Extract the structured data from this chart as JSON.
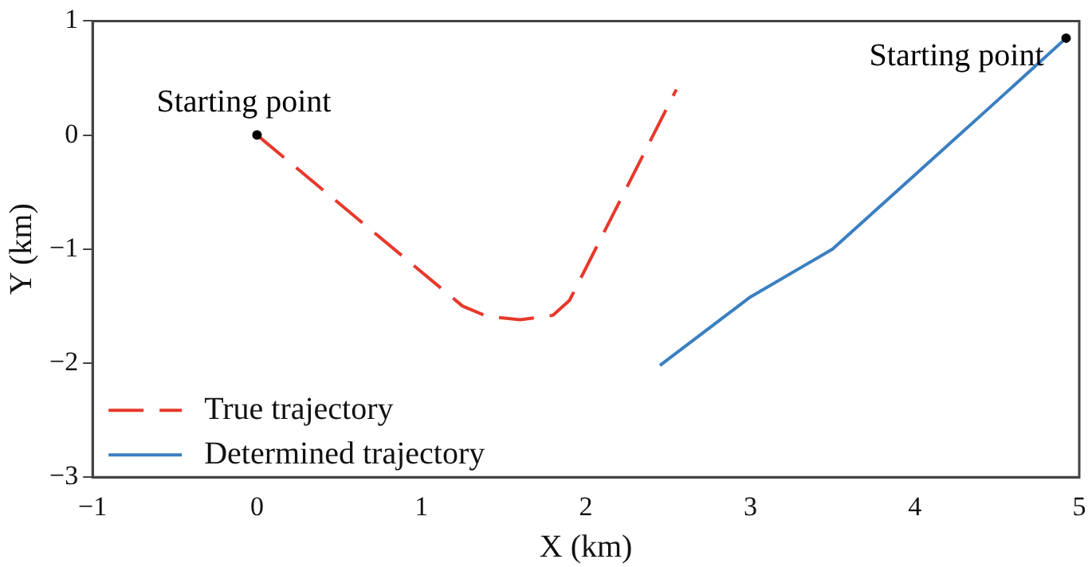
{
  "chart_data": {
    "type": "line",
    "xlabel": "X (km)",
    "ylabel": "Y (km)",
    "xlim": [
      -1,
      5
    ],
    "xticks": [
      {
        "value": -1,
        "label": "−1"
      },
      0,
      1,
      2,
      3,
      4,
      5
    ],
    "ylim": [
      -3,
      1
    ],
    "yticks": [
      {
        "value": -3,
        "label": "−3"
      },
      {
        "value": -2,
        "label": "−2"
      },
      {
        "value": -1,
        "label": "−1"
      },
      0,
      1
    ],
    "grid": false,
    "legend": "bottom left",
    "marker": "none",
    "series": [
      {
        "name": "True trajectory",
        "color": "#e8382b",
        "line_style": "dashed",
        "x": [
          0,
          0.5,
          1.0,
          1.25,
          1.4,
          1.6,
          1.8,
          1.9,
          2.55
        ],
        "values": [
          0,
          -0.6,
          -1.2,
          -1.5,
          -1.59,
          -1.62,
          -1.58,
          -1.45,
          0.4
        ]
      },
      {
        "name": "Determined trajectory",
        "color": "#3a7fc1",
        "line_style": "solid",
        "x": [
          2.45,
          3,
          3.5,
          4,
          4.2,
          4.5,
          4.92
        ],
        "values": [
          -2.02,
          -1.42,
          -1.0,
          -0.35,
          -0.09,
          0.3,
          0.85
        ]
      }
    ],
    "annotations": [
      {
        "text": "Starting point",
        "x": 0,
        "y": 0
      },
      {
        "text": "Starting point",
        "x": 4.92,
        "y": 0.85
      }
    ]
  }
}
